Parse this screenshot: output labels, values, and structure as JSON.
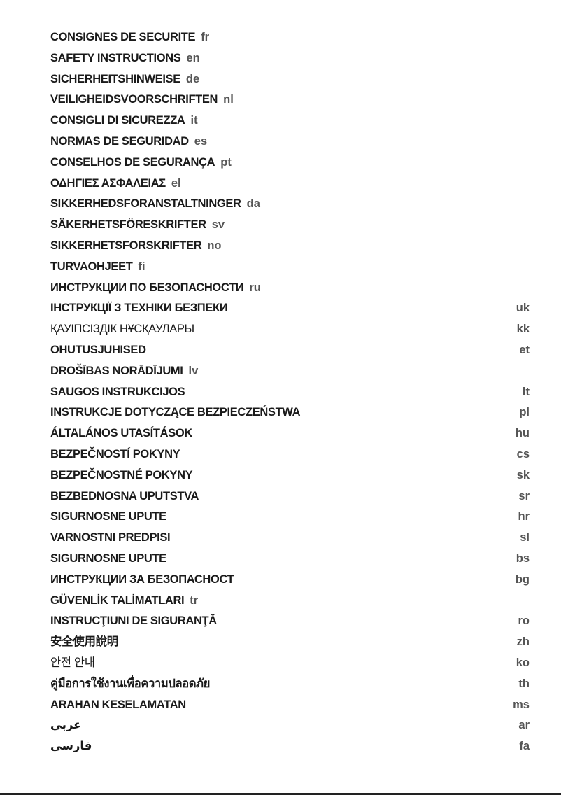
{
  "entries": [
    {
      "title": "CONSIGNES DE SECURITE",
      "code": "fr",
      "code_position": "inline"
    },
    {
      "title": "SAFETY INSTRUCTIONS",
      "code": "en",
      "code_position": "inline"
    },
    {
      "title": "SICHERHEITSHINWEISE",
      "code": "de",
      "code_position": "inline"
    },
    {
      "title": "VEILIGHEIDSVOORSCHRIFTEN",
      "code": "nl",
      "code_position": "inline"
    },
    {
      "title": "CONSIGLI DI SICUREZZA",
      "code": "it",
      "code_position": "inline"
    },
    {
      "title": "NORMAS DE SEGURIDAD",
      "code": "es",
      "code_position": "inline"
    },
    {
      "title": "CONSELHOS DE SEGURANÇA",
      "code": "pt",
      "code_position": "inline"
    },
    {
      "title": "ΟΔΗΓΙΕΣ ΑΣΦΑΛΕΙΑΣ",
      "code": "el",
      "code_position": "inline"
    },
    {
      "title": "SIKKERHEDSFORANSTALTNINGER",
      "code": "da",
      "code_position": "inline"
    },
    {
      "title": "SÄKERHETSFÖRESKRIFTER",
      "code": "sv",
      "code_position": "inline"
    },
    {
      "title": "SIKKERHETSFORSKRIFTER",
      "code": "no",
      "code_position": "inline"
    },
    {
      "title": "TURVAOHJEET",
      "code": "fi",
      "code_position": "inline"
    },
    {
      "title": "ИНСТРУКЦИИ ПО БЕЗОПАСНОСТИ",
      "code": "ru",
      "code_position": "inline"
    },
    {
      "title": "ІНСТРУКЦІЇ З ТЕХНІКИ БЕЗПЕКИ",
      "code": "uk",
      "code_position": "right"
    },
    {
      "title": "ҚАУІПСІЗДІК НҰСҚАУЛАРЫ",
      "code": "kk",
      "code_position": "right",
      "weight": "normal"
    },
    {
      "title": "OHUTUSJUHISED",
      "code": "et",
      "code_position": "right"
    },
    {
      "title": "DROŠĪBAS NORĀDĪJUMI",
      "code": "lv",
      "code_position": "inline"
    },
    {
      "title": "SAUGOS INSTRUKCIJOS",
      "code": "lt",
      "code_position": "right"
    },
    {
      "title": "INSTRUKCJE DOTYCZĄCE BEZPIECZEŃSTWA",
      "code": "pl",
      "code_position": "right"
    },
    {
      "title": "ÁLTALÁNOS UTASÍTÁSOK",
      "code": "hu",
      "code_position": "right"
    },
    {
      "title": "BEZPEČNOSTÍ POKYNY",
      "code": "cs",
      "code_position": "right"
    },
    {
      "title": "BEZPEČNOSTNÉ POKYNY",
      "code": "sk",
      "code_position": "right"
    },
    {
      "title": "BEZBEDNOSNA UPUTSTVA",
      "code": "sr",
      "code_position": "right"
    },
    {
      "title": "SIGURNOSNE UPUTE",
      "code": "hr",
      "code_position": "right"
    },
    {
      "title": "VARNOSTNI PREDPISI",
      "code": "sl",
      "code_position": "right"
    },
    {
      "title": "SIGURNOSNE UPUTE",
      "code": "bs",
      "code_position": "right"
    },
    {
      "title": "ИНСТРУКЦИИ ЗА БЕЗОПАСНОСТ",
      "code": "bg",
      "code_position": "right"
    },
    {
      "title": "GÜVENLİK TALİMATLARI",
      "code": "tr",
      "code_position": "inline"
    },
    {
      "title": "INSTRUCŢIUNI DE SIGURANŢĂ",
      "code": "ro",
      "code_position": "right"
    },
    {
      "title": "安全使用說明",
      "code": "zh",
      "code_position": "right"
    },
    {
      "title": "안전 안내",
      "code": "ko",
      "code_position": "right",
      "weight": "normal"
    },
    {
      "title": "คู่มือการใช้งานเพื่อความปลอดภัย",
      "code": "th",
      "code_position": "right"
    },
    {
      "title": "ARAHAN KESELAMATAN",
      "code": "ms",
      "code_position": "right"
    },
    {
      "title": "عربي",
      "code": "ar",
      "code_position": "right"
    },
    {
      "title": "فارسی",
      "code": "fa",
      "code_position": "right"
    }
  ],
  "colors": {
    "title": "#1a1a1a",
    "code": "#555555",
    "rule": "#222222"
  }
}
